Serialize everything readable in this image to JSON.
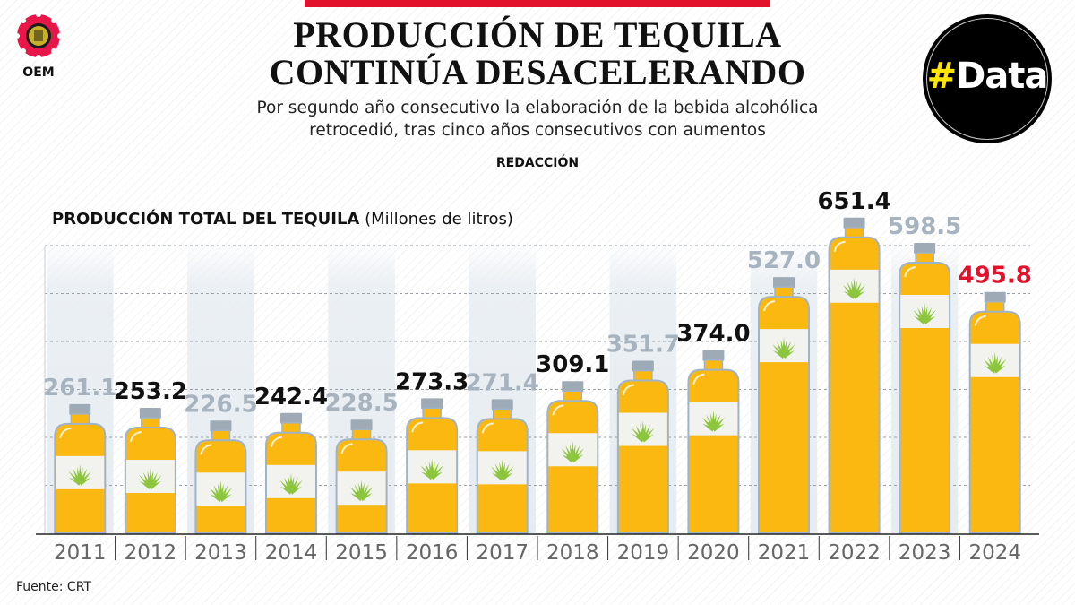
{
  "header": {
    "title_line1": "PRODUCCIÓN DE TEQUILA",
    "title_line2": "CONTINÚA DESACELERANDO",
    "subtitle_line1": "Por segundo año consecutivo la elaboración de la bebida alcohólica",
    "subtitle_line2": "retrocedió, tras cinco años consecutivos con aumentos",
    "byline": "REDACCIÓN",
    "logo_text": "OEM",
    "badge_hash": "#",
    "badge_word": "Data"
  },
  "footer": {
    "source": "Fuente: CRT"
  },
  "colors": {
    "accent_red": "#e3122c",
    "bottle": "#fbb811",
    "label_gray": "#a7b4bf",
    "label_dark": "#111111",
    "agave": "#8cc63f"
  },
  "chart_data": {
    "type": "bar",
    "title": "PRODUCCIÓN TOTAL DEL TEQUILA",
    "title_unit": "(Millones de litros)",
    "categories": [
      "2011",
      "2012",
      "2013",
      "2014",
      "2015",
      "2016",
      "2017",
      "2018",
      "2019",
      "2020",
      "2021",
      "2022",
      "2023",
      "2024"
    ],
    "values": [
      261.1,
      253.2,
      226.5,
      242.4,
      228.5,
      273.3,
      271.4,
      309.1,
      351.7,
      374.0,
      527.0,
      651.4,
      598.5,
      495.8
    ],
    "labels": [
      "261.1",
      "253.2",
      "226.5",
      "242.4",
      "228.5",
      "273.3",
      "271.4",
      "309.1",
      "351.7",
      "374.0",
      "527.0",
      "651.4",
      "598.5",
      "495.8"
    ],
    "label_styles": [
      "gray",
      "dark",
      "gray",
      "dark",
      "gray",
      "dark",
      "gray",
      "dark",
      "gray",
      "dark",
      "gray",
      "dark",
      "gray",
      "red"
    ],
    "mark": "tequila bottle",
    "grid": true
  }
}
